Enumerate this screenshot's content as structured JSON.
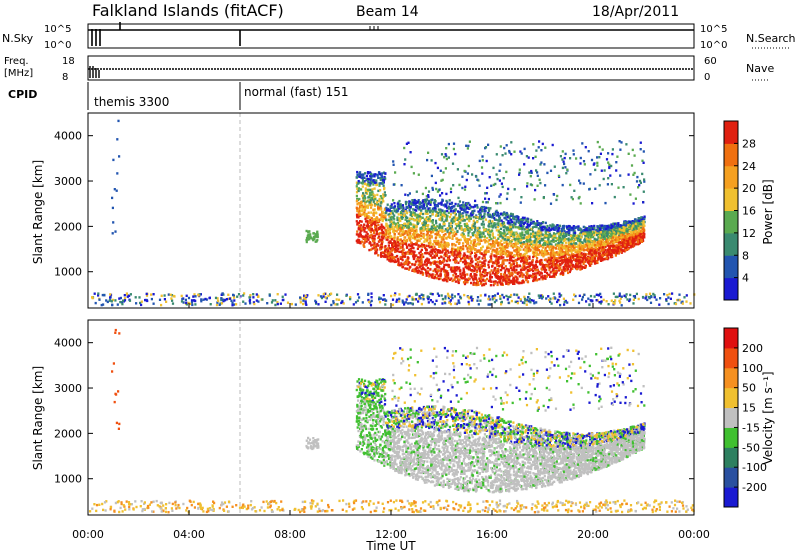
{
  "header": {
    "title": "Falkland Islands (fitACF)",
    "beam": "Beam 14",
    "date": "18/Apr/2011"
  },
  "status_panels": {
    "nsky_label": "N.Sky",
    "nsky_ticks": [
      "10^5",
      "10^0"
    ],
    "nsearch_label": "N.Search",
    "nsearch_ticks": [
      "10^5",
      "10^0"
    ],
    "freq_label": "Freq.",
    "freq_unit": "[MHz]",
    "freq_ticks": [
      "18",
      "8"
    ],
    "nave_label": "Nave",
    "nave_ticks": [
      "60",
      "0"
    ],
    "cpid_label": "CPID",
    "cpid_segments": [
      {
        "start_hour": 0,
        "text": "themis 3300"
      },
      {
        "start_hour": 6,
        "text": "normal (fast) 151"
      }
    ]
  },
  "chart_data": [
    {
      "type": "heatmap",
      "panel": "power",
      "ylabel": "Slant Range [km]",
      "yticks": [
        "1000",
        "2000",
        "3000",
        "4000"
      ],
      "ylim": [
        200,
        4500
      ],
      "xlim": [
        0,
        24
      ],
      "colorbar_label": "Power [dB]",
      "colorbar_ticks": [
        "4",
        "8",
        "12",
        "16",
        "20",
        "24",
        "28"
      ],
      "colors": [
        "#1a1ad2",
        "#2255b0",
        "#3a8a70",
        "#5aaa50",
        "#f0c030",
        "#f5a020",
        "#f07010",
        "#e02010"
      ]
    },
    {
      "type": "heatmap",
      "panel": "velocity",
      "ylabel": "Slant Range [km]",
      "yticks": [
        "1000",
        "2000",
        "3000",
        "4000"
      ],
      "ylim": [
        200,
        4500
      ],
      "xlim": [
        0,
        24
      ],
      "colorbar_label": "Velocity [m s⁻¹]",
      "colorbar_ticks": [
        "200",
        "100",
        "50",
        "15",
        "-15",
        "-50",
        "-100",
        "-200"
      ],
      "colors": [
        "#1a1ad2",
        "#2a50a0",
        "#2e8060",
        "#40c030",
        "#c0c0c0",
        "#f0c030",
        "#f59020",
        "#f05010",
        "#e01010"
      ]
    }
  ],
  "xaxis": {
    "label": "Time UT",
    "ticks": [
      "00:00",
      "04:00",
      "08:00",
      "12:00",
      "16:00",
      "20:00",
      "00:00"
    ]
  }
}
